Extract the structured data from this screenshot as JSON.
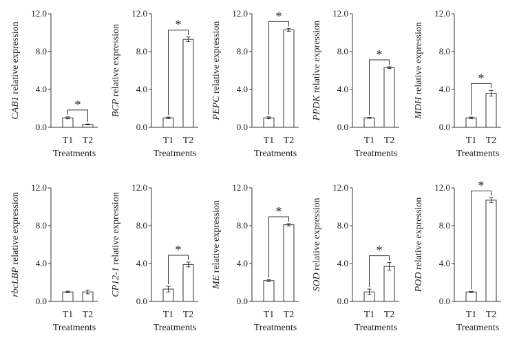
{
  "chart_data": [
    {
      "type": "bar",
      "gene": "CAB1",
      "ylabel": " relative expression",
      "xlabel": "Treatments",
      "categories": [
        "T1",
        "T2"
      ],
      "values": [
        1.0,
        0.3
      ],
      "errors": [
        0.1,
        0.05
      ],
      "ylim": [
        0,
        12
      ],
      "yticks": [
        "0.0",
        "4.0",
        "8.0",
        "12.0"
      ],
      "significance": "*"
    },
    {
      "type": "bar",
      "gene": "BCP",
      "ylabel": " relative expression",
      "xlabel": "Treatments",
      "categories": [
        "T1",
        "T2"
      ],
      "values": [
        1.0,
        9.3
      ],
      "errors": [
        0.08,
        0.25
      ],
      "ylim": [
        0,
        12
      ],
      "yticks": [
        "0.0",
        "4.0",
        "8.0",
        "12.0"
      ],
      "significance": "*"
    },
    {
      "type": "bar",
      "gene": "PEPC",
      "ylabel": " relative expression",
      "xlabel": "Treatments",
      "categories": [
        "T1",
        "T2"
      ],
      "values": [
        1.0,
        10.3
      ],
      "errors": [
        0.1,
        0.15
      ],
      "ylim": [
        0,
        12
      ],
      "yticks": [
        "0.0",
        "4.0",
        "8.0",
        "12.0"
      ],
      "significance": "*"
    },
    {
      "type": "bar",
      "gene": "PPDK",
      "ylabel": " relative expression",
      "xlabel": "Treatments",
      "categories": [
        "T1",
        "T2"
      ],
      "values": [
        1.0,
        6.3
      ],
      "errors": [
        0.05,
        0.1
      ],
      "ylim": [
        0,
        12
      ],
      "yticks": [
        "0.0",
        "4.0",
        "8.0",
        "12.0"
      ],
      "significance": "*"
    },
    {
      "type": "bar",
      "gene": "MDH",
      "ylabel": " relative expression",
      "xlabel": "Treatments",
      "categories": [
        "T1",
        "T2"
      ],
      "values": [
        1.0,
        3.6
      ],
      "errors": [
        0.08,
        0.3
      ],
      "ylim": [
        0,
        12
      ],
      "yticks": [
        "0.0",
        "4.0",
        "8.0",
        "12.0"
      ],
      "significance": "*"
    },
    {
      "type": "bar",
      "gene": "rbcLBP",
      "ylabel": " relative expression",
      "xlabel": "Treatments",
      "categories": [
        "T1",
        "T2"
      ],
      "values": [
        1.0,
        1.0
      ],
      "errors": [
        0.08,
        0.2
      ],
      "ylim": [
        0,
        12
      ],
      "yticks": [
        "0.0",
        "4.0",
        "8.0",
        "12.0"
      ],
      "significance": ""
    },
    {
      "type": "bar",
      "gene": "CP12-1",
      "ylabel": " relative expression",
      "xlabel": "Treatments",
      "categories": [
        "T1",
        "T2"
      ],
      "values": [
        1.3,
        3.9
      ],
      "errors": [
        0.3,
        0.25
      ],
      "ylim": [
        0,
        12
      ],
      "yticks": [
        "0.0",
        "4.0",
        "8.0",
        "12.0"
      ],
      "significance": "*"
    },
    {
      "type": "bar",
      "gene": "ME",
      "ylabel": " relative expression",
      "xlabel": "Treatments",
      "categories": [
        "T1",
        "T2"
      ],
      "values": [
        2.2,
        8.1
      ],
      "errors": [
        0.1,
        0.12
      ],
      "ylim": [
        0,
        12
      ],
      "yticks": [
        "0.0",
        "4.0",
        "8.0",
        "12.0"
      ],
      "significance": "*"
    },
    {
      "type": "bar",
      "gene": "SOD",
      "ylabel": " relative expression",
      "xlabel": "Treatments",
      "categories": [
        "T1",
        "T2"
      ],
      "values": [
        1.0,
        3.7
      ],
      "errors": [
        0.3,
        0.4
      ],
      "ylim": [
        0,
        12
      ],
      "yticks": [
        "0.0",
        "4.0",
        "8.0",
        "12.0"
      ],
      "significance": "*"
    },
    {
      "type": "bar",
      "gene": "POD",
      "ylabel": " relative expression",
      "xlabel": "Treatments",
      "categories": [
        "T1",
        "T2"
      ],
      "values": [
        1.0,
        10.7
      ],
      "errors": [
        0.06,
        0.25
      ],
      "ylim": [
        0,
        12
      ],
      "yticks": [
        "0.0",
        "4.0",
        "8.0",
        "12.0"
      ],
      "significance": "*"
    }
  ]
}
